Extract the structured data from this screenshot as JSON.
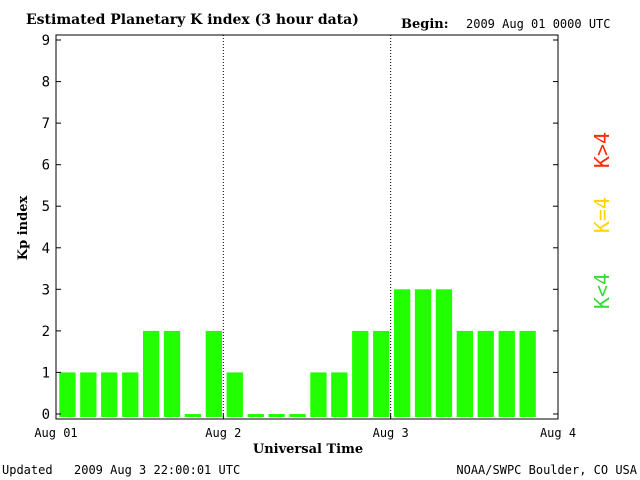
{
  "header": {
    "title": "Estimated Planetary K index (3 hour data)",
    "begin_label": "Begin:",
    "begin_value": "2009 Aug 01 0000 UTC"
  },
  "footer": {
    "updated_label": "Updated",
    "updated_value": "2009 Aug  3 22:00:01 UTC",
    "source": "NOAA/SWPC Boulder, CO USA"
  },
  "legend": {
    "gt4": "K>4",
    "eq4": "K=4",
    "lt4": "K<4",
    "colors": {
      "gt4": "#ff2a00",
      "eq4": "#ffd400",
      "lt4": "#33dd33"
    }
  },
  "chart_data": {
    "type": "bar",
    "title": "Estimated Planetary K index (3 hour data)",
    "xlabel": "Universal Time",
    "ylabel": "Kp index",
    "ylim": [
      0,
      9
    ],
    "yticks": [
      0,
      1,
      2,
      3,
      4,
      5,
      6,
      7,
      8,
      9
    ],
    "xticks": [
      "Aug 01",
      "Aug 2",
      "Aug 3",
      "Aug 4"
    ],
    "x_days": 3,
    "bars_per_day": 8,
    "bar_color": "#22ff00",
    "values": [
      1,
      1,
      1,
      1,
      2,
      2,
      0,
      2,
      1,
      0,
      0,
      0,
      1,
      1,
      2,
      2,
      3,
      3,
      3,
      2,
      2,
      2,
      2
    ],
    "grid": false
  }
}
